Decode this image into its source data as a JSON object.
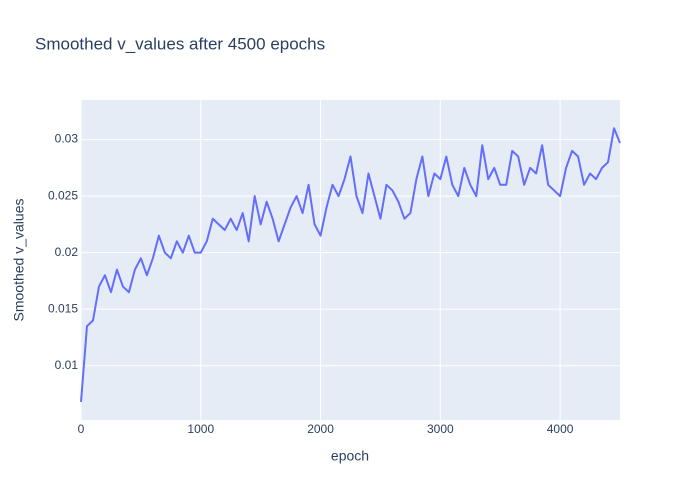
{
  "chart_data": {
    "type": "line",
    "title": "Smoothed v_values after 4500 epochs",
    "x_label": "epoch",
    "y_label": "Smoothed v_values",
    "x": [
      0,
      50,
      100,
      150,
      200,
      250,
      300,
      350,
      400,
      450,
      500,
      550,
      600,
      650,
      700,
      750,
      800,
      850,
      900,
      950,
      1000,
      1050,
      1100,
      1150,
      1200,
      1250,
      1300,
      1350,
      1400,
      1450,
      1500,
      1550,
      1600,
      1650,
      1700,
      1750,
      1800,
      1850,
      1900,
      1950,
      2000,
      2050,
      2100,
      2150,
      2200,
      2250,
      2300,
      2350,
      2400,
      2450,
      2500,
      2550,
      2600,
      2650,
      2700,
      2750,
      2800,
      2850,
      2900,
      2950,
      3000,
      3050,
      3100,
      3150,
      3200,
      3250,
      3300,
      3350,
      3400,
      3450,
      3500,
      3550,
      3600,
      3650,
      3700,
      3750,
      3800,
      3850,
      3900,
      3950,
      4000,
      4050,
      4100,
      4150,
      4200,
      4250,
      4300,
      4350,
      4400,
      4450,
      4500
    ],
    "series": [
      {
        "name": "v_values",
        "color": "#636efa",
        "values": [
          0.0068,
          0.0135,
          0.014,
          0.017,
          0.018,
          0.0165,
          0.0185,
          0.017,
          0.0165,
          0.0185,
          0.0195,
          0.018,
          0.0195,
          0.0215,
          0.02,
          0.0195,
          0.021,
          0.02,
          0.0215,
          0.02,
          0.02,
          0.021,
          0.023,
          0.0225,
          0.022,
          0.023,
          0.022,
          0.0235,
          0.021,
          0.025,
          0.0225,
          0.0245,
          0.023,
          0.021,
          0.0225,
          0.024,
          0.025,
          0.0235,
          0.026,
          0.0225,
          0.0215,
          0.024,
          0.026,
          0.025,
          0.0265,
          0.0285,
          0.025,
          0.0235,
          0.027,
          0.025,
          0.023,
          0.026,
          0.0255,
          0.0245,
          0.023,
          0.0235,
          0.0265,
          0.0285,
          0.025,
          0.027,
          0.0265,
          0.0285,
          0.026,
          0.025,
          0.0275,
          0.026,
          0.025,
          0.0295,
          0.0265,
          0.0275,
          0.026,
          0.026,
          0.029,
          0.0285,
          0.026,
          0.0275,
          0.027,
          0.0295,
          0.026,
          0.0255,
          0.025,
          0.0275,
          0.029,
          0.0285,
          0.026,
          0.027,
          0.0265,
          0.0275,
          0.028,
          0.031,
          0.0297
        ]
      }
    ],
    "xlim": [
      0,
      4500
    ],
    "xticks": [
      0,
      1000,
      2000,
      3000,
      4000
    ],
    "ylim": [
      0.0052,
      0.0335
    ],
    "yticks": [
      0.01,
      0.015,
      0.02,
      0.025,
      0.03
    ],
    "grid": true
  }
}
